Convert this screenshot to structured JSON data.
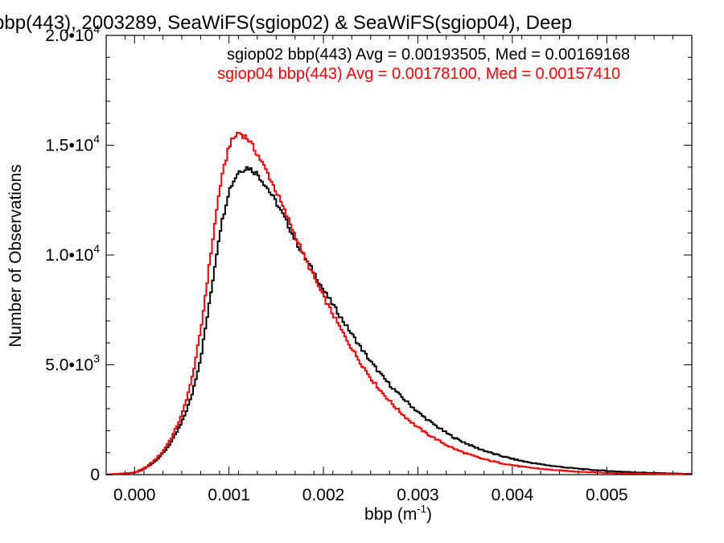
{
  "chart_data": {
    "type": "line",
    "title": "bbp(443), 2003289, SeaWiFS(sgiop02) & SeaWiFS(sgiop04), Deep",
    "xlabel": "bbp (m",
    "xlabel_sup": "-1",
    "xlabel_close": ")",
    "ylabel": "Number of Observations",
    "xlim": [
      -0.0003,
      0.0059
    ],
    "ylim": [
      0,
      20000
    ],
    "x_ticks": [
      {
        "value": 0.0,
        "label": "0.000"
      },
      {
        "value": 0.001,
        "label": "0.001"
      },
      {
        "value": 0.002,
        "label": "0.002"
      },
      {
        "value": 0.003,
        "label": "0.003"
      },
      {
        "value": 0.004,
        "label": "0.004"
      },
      {
        "value": 0.005,
        "label": "0.005"
      }
    ],
    "y_ticks": [
      {
        "value": 0,
        "mantissa": "0",
        "exp": ""
      },
      {
        "value": 5000,
        "mantissa": "5.0•10",
        "exp": "3"
      },
      {
        "value": 10000,
        "mantissa": "1.0•10",
        "exp": "4"
      },
      {
        "value": 15000,
        "mantissa": "1.5•10",
        "exp": "4"
      },
      {
        "value": 20000,
        "mantissa": "2.0•10",
        "exp": "4"
      }
    ],
    "grid": false,
    "legend_position": "top-right",
    "series": [
      {
        "name": "sgiop02",
        "legend": "sgiop02 bbp(443) Avg = 0.00193505, Med = 0.00169168",
        "color": "#000000",
        "points": [
          [
            -0.0003,
            0
          ],
          [
            0.0,
            80
          ],
          [
            0.0001,
            250
          ],
          [
            0.0002,
            550
          ],
          [
            0.0003,
            950
          ],
          [
            0.0004,
            1550
          ],
          [
            0.0005,
            2350
          ],
          [
            0.0006,
            3500
          ],
          [
            0.0007,
            5300
          ],
          [
            0.0008,
            8000
          ],
          [
            0.0009,
            11000
          ],
          [
            0.001,
            12950
          ],
          [
            0.0011,
            13800
          ],
          [
            0.0012,
            14000
          ],
          [
            0.0013,
            13700
          ],
          [
            0.0014,
            13100
          ],
          [
            0.0015,
            12400
          ],
          [
            0.0016,
            11600
          ],
          [
            0.0017,
            10700
          ],
          [
            0.0018,
            9900
          ],
          [
            0.0019,
            9200
          ],
          [
            0.002,
            8400
          ],
          [
            0.0021,
            7750
          ],
          [
            0.0022,
            7050
          ],
          [
            0.0023,
            6400
          ],
          [
            0.0024,
            5750
          ],
          [
            0.0025,
            5150
          ],
          [
            0.0026,
            4600
          ],
          [
            0.0027,
            4100
          ],
          [
            0.0028,
            3650
          ],
          [
            0.0029,
            3250
          ],
          [
            0.003,
            2850
          ],
          [
            0.0031,
            2500
          ],
          [
            0.0032,
            2200
          ],
          [
            0.0033,
            1900
          ],
          [
            0.0034,
            1650
          ],
          [
            0.0035,
            1450
          ],
          [
            0.0036,
            1250
          ],
          [
            0.0037,
            1100
          ],
          [
            0.0038,
            950
          ],
          [
            0.0039,
            830
          ],
          [
            0.004,
            720
          ],
          [
            0.0041,
            620
          ],
          [
            0.0042,
            540
          ],
          [
            0.0043,
            470
          ],
          [
            0.0044,
            410
          ],
          [
            0.0045,
            360
          ],
          [
            0.0046,
            310
          ],
          [
            0.0047,
            270
          ],
          [
            0.0048,
            230
          ],
          [
            0.0049,
            200
          ],
          [
            0.005,
            170
          ],
          [
            0.0051,
            145
          ],
          [
            0.0052,
            125
          ],
          [
            0.0053,
            105
          ],
          [
            0.0054,
            90
          ],
          [
            0.0055,
            75
          ],
          [
            0.0056,
            62
          ],
          [
            0.0057,
            52
          ],
          [
            0.0058,
            42
          ],
          [
            0.0059,
            35
          ]
        ]
      },
      {
        "name": "sgiop04",
        "legend": "sgiop04 bbp(443) Avg = 0.00178100, Med = 0.00157410",
        "color": "#ff0000",
        "points": [
          [
            -0.0003,
            0
          ],
          [
            0.0,
            90
          ],
          [
            0.0001,
            280
          ],
          [
            0.0002,
            600
          ],
          [
            0.0003,
            1050
          ],
          [
            0.0004,
            1750
          ],
          [
            0.0005,
            2700
          ],
          [
            0.0006,
            4200
          ],
          [
            0.0007,
            6500
          ],
          [
            0.0008,
            9800
          ],
          [
            0.0009,
            13000
          ],
          [
            0.001,
            15000
          ],
          [
            0.0011,
            15600
          ],
          [
            0.0012,
            15300
          ],
          [
            0.0013,
            14600
          ],
          [
            0.0014,
            13800
          ],
          [
            0.0015,
            12900
          ],
          [
            0.0016,
            11900
          ],
          [
            0.0017,
            10900
          ],
          [
            0.0018,
            9900
          ],
          [
            0.0019,
            9000
          ],
          [
            0.002,
            8100
          ],
          [
            0.0021,
            7300
          ],
          [
            0.0022,
            6500
          ],
          [
            0.0023,
            5750
          ],
          [
            0.0024,
            5050
          ],
          [
            0.0025,
            4400
          ],
          [
            0.0026,
            3850
          ],
          [
            0.0027,
            3350
          ],
          [
            0.0028,
            2900
          ],
          [
            0.0029,
            2500
          ],
          [
            0.003,
            2150
          ],
          [
            0.0031,
            1850
          ],
          [
            0.0032,
            1600
          ],
          [
            0.0033,
            1350
          ],
          [
            0.0034,
            1150
          ],
          [
            0.0035,
            980
          ],
          [
            0.0036,
            830
          ],
          [
            0.0037,
            700
          ],
          [
            0.0038,
            600
          ],
          [
            0.0039,
            510
          ],
          [
            0.004,
            430
          ],
          [
            0.0041,
            365
          ],
          [
            0.0042,
            310
          ],
          [
            0.0043,
            265
          ],
          [
            0.0044,
            225
          ],
          [
            0.0045,
            190
          ],
          [
            0.0046,
            160
          ],
          [
            0.0047,
            135
          ],
          [
            0.0048,
            115
          ],
          [
            0.0049,
            97
          ],
          [
            0.005,
            82
          ],
          [
            0.0051,
            70
          ],
          [
            0.0052,
            59
          ],
          [
            0.0053,
            50
          ],
          [
            0.0054,
            42
          ],
          [
            0.0055,
            36
          ],
          [
            0.0056,
            30
          ],
          [
            0.0057,
            25
          ],
          [
            0.0058,
            21
          ],
          [
            0.0059,
            18
          ]
        ]
      }
    ]
  }
}
